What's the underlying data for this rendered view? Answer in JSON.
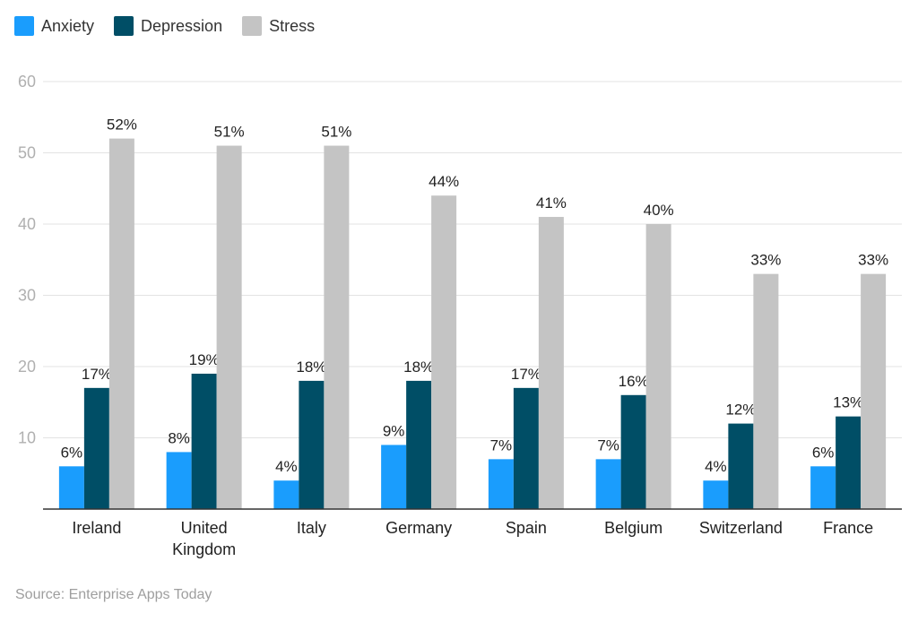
{
  "chart_data": {
    "type": "bar",
    "categories": [
      "Ireland",
      "United Kingdom",
      "Italy",
      "Germany",
      "Spain",
      "Belgium",
      "Switzerland",
      "France"
    ],
    "category_lines": [
      [
        "Ireland"
      ],
      [
        "United",
        "Kingdom"
      ],
      [
        "Italy"
      ],
      [
        "Germany"
      ],
      [
        "Spain"
      ],
      [
        "Belgium"
      ],
      [
        "Switzerland"
      ],
      [
        "France"
      ]
    ],
    "series": [
      {
        "name": "Anxiety",
        "color": "#1a9dfd",
        "values": [
          6,
          8,
          4,
          9,
          7,
          7,
          4,
          6
        ]
      },
      {
        "name": "Depression",
        "color": "#004e66",
        "values": [
          17,
          19,
          18,
          18,
          17,
          16,
          12,
          13
        ]
      },
      {
        "name": "Stress",
        "color": "#c4c4c4",
        "values": [
          52,
          51,
          51,
          44,
          41,
          40,
          33,
          33
        ]
      }
    ],
    "value_suffix": "%",
    "ylim": [
      0,
      60
    ],
    "yticks": [
      10,
      20,
      30,
      40,
      50,
      60
    ],
    "grid": true,
    "legend": "top-left",
    "xlabel": "",
    "ylabel": ""
  },
  "source": "Source: Enterprise Apps Today"
}
